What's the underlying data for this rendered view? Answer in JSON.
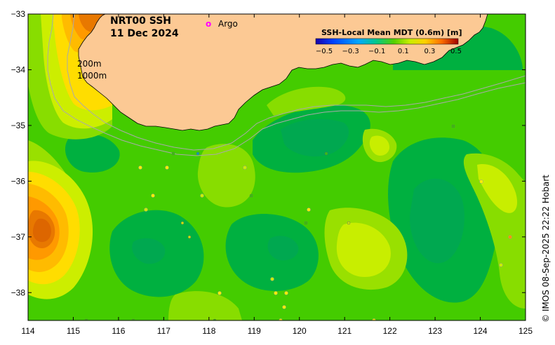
{
  "map": {
    "title_line1": "NRT00 SSH",
    "title_line2": "11 Dec 2024",
    "argo_marker": "o",
    "argo_label": "Argo",
    "depth_200": "200m",
    "depth_1000": "1000m",
    "credit": "© IMOS 08-Sep-2025 22:22 Hobart",
    "x_ticks": [
      "114",
      "115",
      "116",
      "117",
      "118",
      "119",
      "120",
      "121",
      "122",
      "123",
      "124",
      "125"
    ],
    "y_ticks": [
      "−33",
      "−34",
      "−35",
      "−36",
      "−37",
      "−38"
    ],
    "lon_range": [
      114,
      125
    ],
    "lat_range": [
      -38.5,
      -33
    ]
  },
  "legend": {
    "title": "SSH-Local Mean MDT (0.6m) [m]",
    "ticks": [
      "−0.5",
      "−0.3",
      "−0.1",
      "0.1",
      "0.3",
      "0.5"
    ],
    "colors": [
      "#1a00a8",
      "#0033ff",
      "#0099ff",
      "#00ccc0",
      "#00b050",
      "#66d200",
      "#c8ee00",
      "#ffd000",
      "#ff8c00",
      "#e03000",
      "#a00000"
    ]
  },
  "colors": {
    "land": "#fcc994",
    "ocean_base": "#33cc00",
    "ssh_low": "#00b040",
    "ssh_mid": "#66dd00",
    "ssh_high": "#ccee00",
    "ssh_higher": "#ffcc00",
    "ssh_peak": "#dd6600",
    "isobath": "#aaaaaa",
    "argo": "#ff00ff"
  }
}
